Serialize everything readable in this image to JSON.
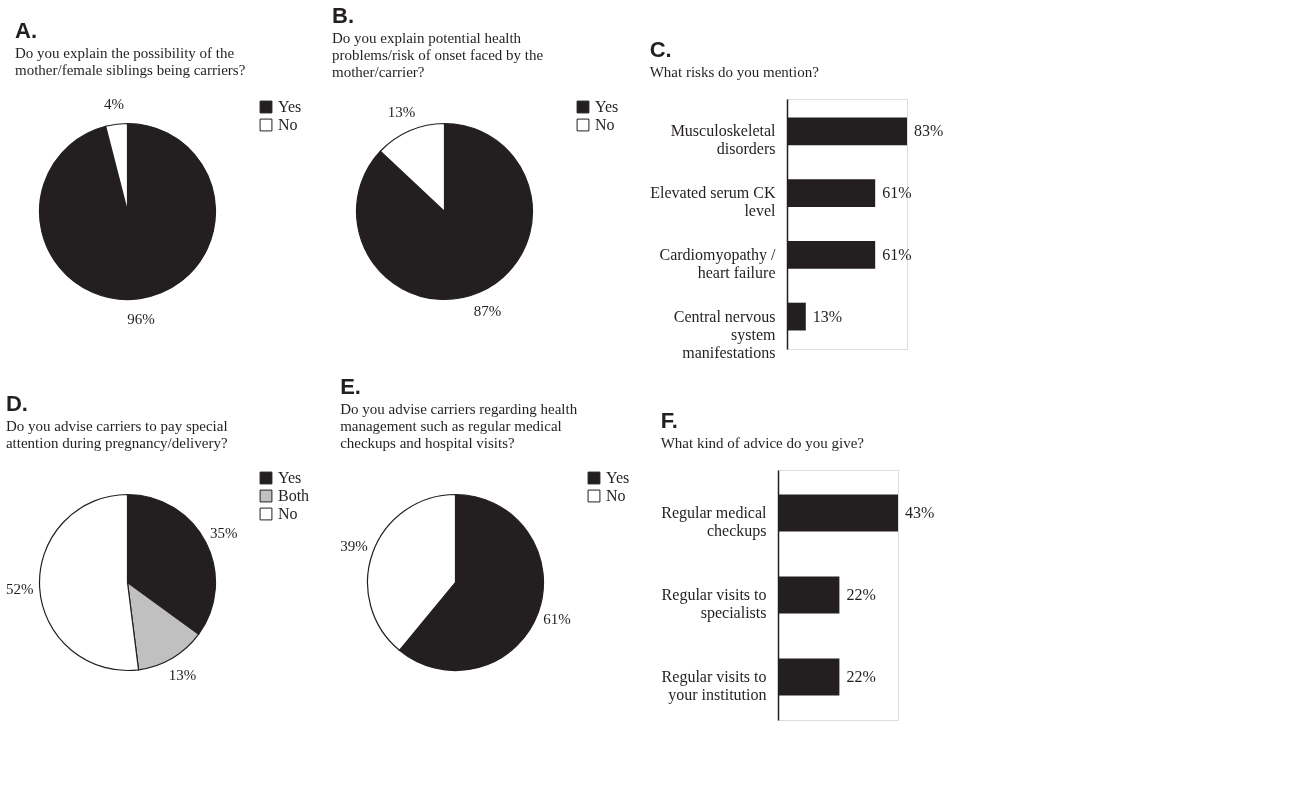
{
  "chart_data": [
    {
      "type": "pie",
      "title": "A.",
      "subtitle": "Do you explain the possibility of the mother/female siblings being carriers?",
      "categories": [
        "Yes",
        "No"
      ],
      "values": [
        96,
        4
      ],
      "colors": [
        "#231f20",
        "#ffffff"
      ],
      "value_labels": [
        "96%",
        "4%"
      ],
      "legend": "right"
    },
    {
      "type": "pie",
      "title": "B.",
      "subtitle": "Do you explain potential health problems/risk of onset faced by the mother/carrier?",
      "categories": [
        "Yes",
        "No"
      ],
      "values": [
        87,
        13
      ],
      "colors": [
        "#231f20",
        "#ffffff"
      ],
      "value_labels": [
        "87%",
        "13%"
      ],
      "legend": "right"
    },
    {
      "type": "bar",
      "orientation": "horizontal",
      "title": "C.",
      "subtitle": "What risks do you mention?",
      "categories": [
        "Musculoskeletal disorders",
        "Elevated serum CK level",
        "Cardiomyopathy / heart failure",
        "Central nervous system manifestations"
      ],
      "values": [
        83,
        61,
        61,
        13
      ],
      "color": "#231f20",
      "value_labels": [
        "83%",
        "61%",
        "61%",
        "13%"
      ]
    },
    {
      "type": "pie",
      "title": "D.",
      "subtitle": "Do you advise carriers to pay special attention during pregnancy/delivery?",
      "categories": [
        "Yes",
        "Both",
        "No"
      ],
      "values": [
        35,
        13,
        52
      ],
      "colors": [
        "#231f20",
        "#c0c0c0",
        "#ffffff"
      ],
      "value_labels": [
        "35%",
        "13%",
        "52%"
      ],
      "legend": "right"
    },
    {
      "type": "pie",
      "title": "E.",
      "subtitle": "Do you advise carriers regarding health management such as regular medical checkups and hospital visits?",
      "categories": [
        "Yes",
        "No"
      ],
      "values": [
        61,
        39
      ],
      "colors": [
        "#231f20",
        "#ffffff"
      ],
      "value_labels": [
        "61%",
        "39%"
      ],
      "legend": "right"
    },
    {
      "type": "bar",
      "orientation": "horizontal",
      "title": "F.",
      "subtitle": "What kind of advice do you give?",
      "categories": [
        "Regular medical checkups",
        "Regular visits to specialists",
        "Regular visits to your institution"
      ],
      "values": [
        43,
        22,
        22
      ],
      "color": "#231f20",
      "value_labels": [
        "43%",
        "22%",
        "22%"
      ]
    }
  ]
}
